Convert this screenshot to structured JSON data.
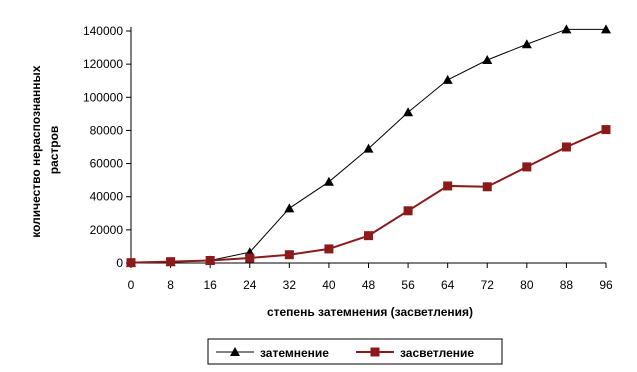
{
  "chart_data": {
    "type": "line",
    "x": [
      0,
      8,
      16,
      24,
      32,
      40,
      48,
      56,
      64,
      72,
      80,
      88,
      96
    ],
    "xlabel": "степень затемнения (засветления)",
    "ylabel": "количество нераспознанных растров",
    "ylim": [
      0,
      140000
    ],
    "yticks": [
      0,
      20000,
      40000,
      60000,
      80000,
      100000,
      120000,
      140000
    ],
    "grid": false,
    "legend_position": "bottom",
    "series": [
      {
        "name": "затемнение",
        "color": "#000000",
        "marker": "triangle",
        "values": [
          200,
          500,
          1500,
          6500,
          33000,
          49000,
          69000,
          91000,
          110500,
          122500,
          132000,
          141000,
          141000
        ]
      },
      {
        "name": "засветление",
        "color": "#8B1A1A",
        "marker": "square",
        "values": [
          200,
          800,
          1500,
          3000,
          5000,
          8500,
          16500,
          31500,
          46500,
          46000,
          58000,
          70000,
          80500
        ]
      }
    ]
  }
}
